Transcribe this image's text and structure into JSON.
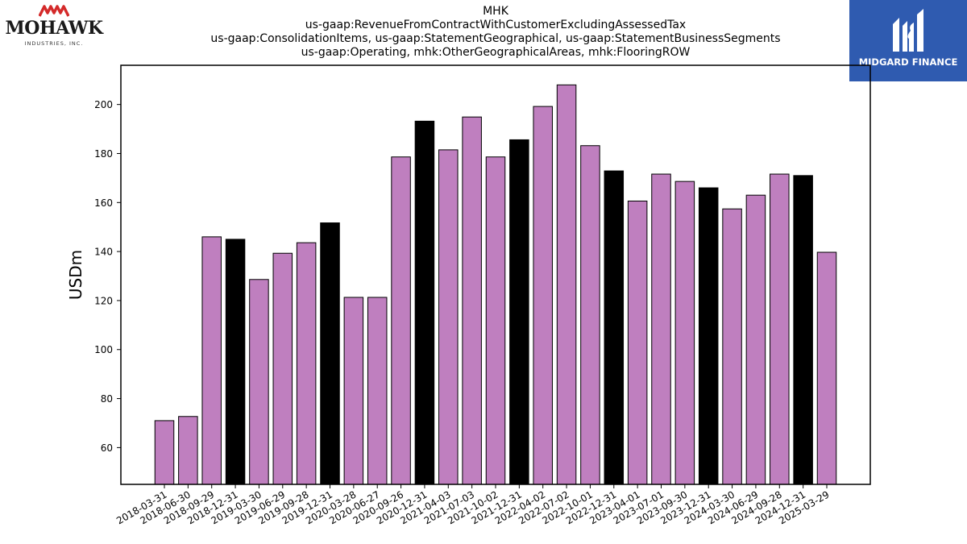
{
  "title_lines": [
    "MHK",
    "us-gaap:RevenueFromContractWithCustomerExcludingAssessedTax",
    "us-gaap:ConsolidationItems, us-gaap:StatementGeographical, us-gaap:StatementBusinessSegments",
    "us-gaap:Operating, mhk:OtherGeographicalAreas, mhk:FlooringROW"
  ],
  "logos": {
    "left_word": "MOHAWK",
    "left_sub": "INDUSTRIES, INC.",
    "right_name": "MIDGARD FINANCE"
  },
  "colors": {
    "bar_default": "#bf7fbf",
    "bar_q4": "#000000",
    "edge": "#000000"
  },
  "chart_data": {
    "type": "bar",
    "ylabel": "USDm",
    "xlabel": "",
    "ylim": [
      45,
      216
    ],
    "yticks": [
      60,
      80,
      100,
      120,
      140,
      160,
      180,
      200
    ],
    "categories": [
      "2018-03-31",
      "2018-06-30",
      "2018-09-29",
      "2018-12-31",
      "2019-03-30",
      "2019-06-29",
      "2019-09-28",
      "2019-12-31",
      "2020-03-28",
      "2020-06-27",
      "2020-09-26",
      "2020-12-31",
      "2021-04-03",
      "2021-07-03",
      "2021-10-02",
      "2021-12-31",
      "2022-04-02",
      "2022-07-02",
      "2022-10-01",
      "2022-12-31",
      "2023-04-01",
      "2023-07-01",
      "2023-09-30",
      "2023-12-31",
      "2024-03-30",
      "2024-06-29",
      "2024-09-28",
      "2024-12-31",
      "2025-03-29"
    ],
    "values": [
      71,
      72.7,
      146,
      145,
      128.6,
      139.3,
      143.6,
      151.7,
      121.3,
      121.3,
      178.6,
      193.2,
      181.5,
      194.9,
      178.6,
      185.6,
      199.2,
      208,
      183.2,
      172.9,
      160.6,
      171.6,
      168.6,
      166,
      157.4,
      163,
      171.6,
      171,
      139.7
    ],
    "highlight": [
      "q4",
      "q4",
      "q4",
      "q4q",
      "q4",
      "q4",
      "q4",
      "q4q",
      "q4",
      "q4",
      "q4",
      "q4q",
      "q4",
      "q4",
      "q4",
      "q4q",
      "q4",
      "q4",
      "q4",
      "q4q",
      "q4",
      "q4",
      "q4",
      "q4q",
      "q4",
      "q4",
      "q4",
      "q4q",
      "q4"
    ]
  }
}
